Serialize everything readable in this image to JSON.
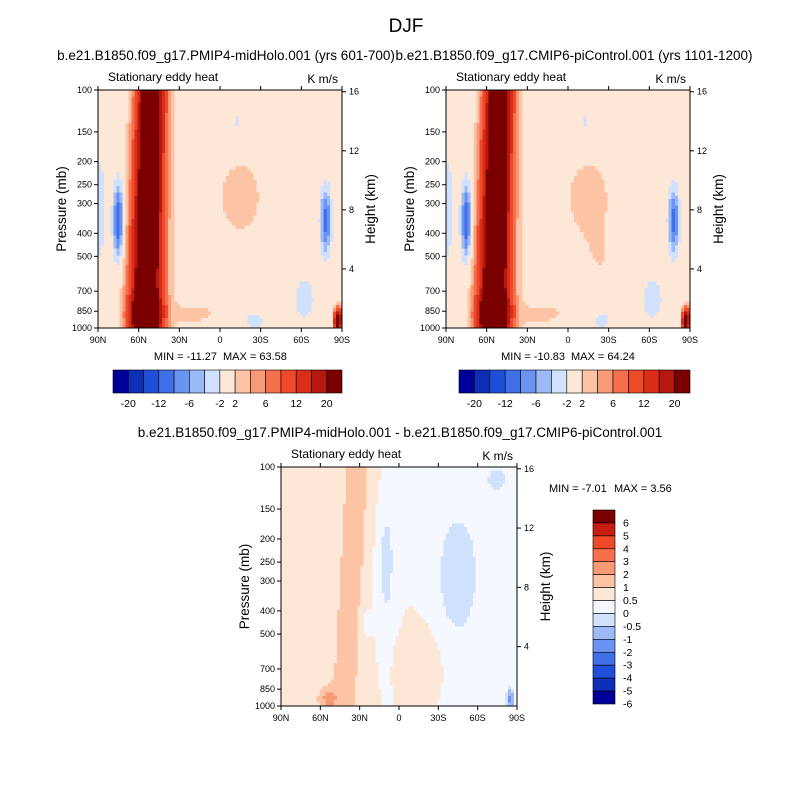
{
  "figure": {
    "title": "DJF",
    "colors": {
      "left_scale": [
        "#000099",
        "#0d2fb8",
        "#1f4fd6",
        "#3f70e8",
        "#6b94f2",
        "#9dbaf8",
        "#cfe1fc",
        "#fde8d8",
        "#fcc3a4",
        "#f99a76",
        "#f6704d",
        "#ee4a2a",
        "#d92d18",
        "#b5180e",
        "#7a0000"
      ],
      "right_scale": [
        "#000099",
        "#0d2fb8",
        "#1f4fd6",
        "#3f70e8",
        "#6b94f2",
        "#9dbaf8",
        "#cfe1fc",
        "#fde8d8",
        "#fcc3a4",
        "#f99a76",
        "#f6704d",
        "#ee4a2a",
        "#d92d18",
        "#b5180e",
        "#7a0000"
      ],
      "diff_scale": [
        "#000099",
        "#0d2fb8",
        "#1f4fd6",
        "#3f70e8",
        "#6b94f2",
        "#9dbaf8",
        "#cfe1fc",
        "#f5f8ff",
        "#fde8d8",
        "#fcc3a4",
        "#f99a76",
        "#f6704d",
        "#ee4a2a",
        "#c71d10",
        "#7a0000"
      ]
    }
  },
  "chart_data": [
    {
      "type": "heatmap",
      "title": "b.e21.B1850.f09_g17.PMIP4-midHolo.001 (yrs 601-700)",
      "subtitle_left": "Stationary eddy heat",
      "subtitle_right": "K m/s",
      "xlabel": "",
      "ylabel": "Pressure (mb)",
      "ylabel_right": "Height (km)",
      "x_ticks": [
        "90N",
        "60N",
        "30N",
        "0",
        "30S",
        "60S",
        "90S"
      ],
      "x_range": [
        90,
        -90
      ],
      "y_ticks": [
        "100",
        "150",
        "200",
        "250",
        "300",
        "400",
        "500",
        "700",
        "850",
        "1000"
      ],
      "y_range": [
        100,
        1000
      ],
      "y_scale": "log",
      "height_ticks": [
        "16",
        "12",
        "8",
        "4"
      ],
      "min_label": "MIN = -11.27",
      "max_label": "MAX =  63.58",
      "min": -11.27,
      "max": 63.58,
      "colorbar": {
        "orientation": "horizontal",
        "levels": [
          "-20",
          "-12",
          "-6",
          "-2",
          "2",
          "6",
          "12",
          "20"
        ]
      }
    },
    {
      "type": "heatmap",
      "title": "b.e21.B1850.f09_g17.CMIP6-piControl.001 (yrs 1101-1200)",
      "subtitle_left": "Stationary eddy heat",
      "subtitle_right": "K m/s",
      "xlabel": "",
      "ylabel": "Pressure (mb)",
      "ylabel_right": "Height (km)",
      "x_ticks": [
        "90N",
        "60N",
        "30N",
        "0",
        "30S",
        "60S",
        "90S"
      ],
      "x_range": [
        90,
        -90
      ],
      "y_ticks": [
        "100",
        "150",
        "200",
        "250",
        "300",
        "400",
        "500",
        "700",
        "850",
        "1000"
      ],
      "y_range": [
        100,
        1000
      ],
      "y_scale": "log",
      "height_ticks": [
        "16",
        "12",
        "8",
        "4"
      ],
      "min_label": "MIN = -10.83",
      "max_label": "MAX =  64.24",
      "min": -10.83,
      "max": 64.24,
      "colorbar": {
        "orientation": "horizontal",
        "levels": [
          "-20",
          "-12",
          "-6",
          "-2",
          "2",
          "6",
          "12",
          "20"
        ]
      }
    },
    {
      "type": "heatmap",
      "title": "b.e21.B1850.f09_g17.PMIP4-midHolo.001 - b.e21.B1850.f09_g17.CMIP6-piControl.001",
      "subtitle_left": "Stationary eddy heat",
      "subtitle_right": "K m/s",
      "xlabel": "",
      "ylabel": "Pressure (mb)",
      "ylabel_right": "Height (km)",
      "x_ticks": [
        "90N",
        "60N",
        "30N",
        "0",
        "30S",
        "60S",
        "90S"
      ],
      "x_range": [
        90,
        -90
      ],
      "y_ticks": [
        "100",
        "150",
        "200",
        "250",
        "300",
        "400",
        "500",
        "700",
        "850",
        "1000"
      ],
      "y_range": [
        100,
        1000
      ],
      "y_scale": "log",
      "height_ticks": [
        "16",
        "12",
        "8",
        "4"
      ],
      "min_label": "MIN =  -7.01",
      "max_label": "MAX =   3.56",
      "min": -7.01,
      "max": 3.56,
      "colorbar": {
        "orientation": "vertical",
        "levels": [
          "6",
          "5",
          "4",
          "3",
          "2",
          "1",
          "0.5",
          "0",
          "-0.5",
          "-1",
          "-2",
          "-3",
          "-4",
          "-5",
          "-6"
        ]
      }
    }
  ]
}
